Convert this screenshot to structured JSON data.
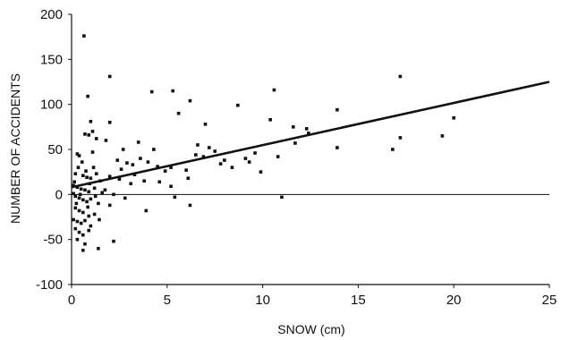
{
  "chart_data": {
    "type": "scatter",
    "title": "",
    "xlabel": "SNOW (cm)",
    "ylabel": "NUMBER OF ACCIDENTS",
    "xlim": [
      0,
      25
    ],
    "ylim": [
      -100,
      200
    ],
    "xticks": [
      0,
      5,
      10,
      15,
      20,
      25
    ],
    "yticks": [
      -100,
      -50,
      0,
      50,
      100,
      150,
      200
    ],
    "grid": false,
    "zero_line": true,
    "trendline": {
      "type": "linear",
      "x": [
        0,
        25
      ],
      "y": [
        8,
        125
      ]
    },
    "points": [
      {
        "x": 0.65,
        "y": 176
      },
      {
        "x": 2.0,
        "y": 131
      },
      {
        "x": 17.2,
        "y": 131
      },
      {
        "x": 4.2,
        "y": 114
      },
      {
        "x": 5.3,
        "y": 115
      },
      {
        "x": 10.6,
        "y": 116
      },
      {
        "x": 0.85,
        "y": 109
      },
      {
        "x": 6.2,
        "y": 104
      },
      {
        "x": 8.7,
        "y": 99
      },
      {
        "x": 13.9,
        "y": 94
      },
      {
        "x": 20.0,
        "y": 85
      },
      {
        "x": 10.4,
        "y": 83
      },
      {
        "x": 1.0,
        "y": 81
      },
      {
        "x": 2.0,
        "y": 80
      },
      {
        "x": 5.6,
        "y": 90
      },
      {
        "x": 7.0,
        "y": 78
      },
      {
        "x": 11.6,
        "y": 75
      },
      {
        "x": 12.3,
        "y": 73
      },
      {
        "x": 12.4,
        "y": 68
      },
      {
        "x": 1.1,
        "y": 70
      },
      {
        "x": 0.7,
        "y": 67
      },
      {
        "x": 0.9,
        "y": 66
      },
      {
        "x": 1.3,
        "y": 62
      },
      {
        "x": 1.8,
        "y": 60
      },
      {
        "x": 17.2,
        "y": 63
      },
      {
        "x": 19.4,
        "y": 65
      },
      {
        "x": 3.5,
        "y": 58
      },
      {
        "x": 11.7,
        "y": 57
      },
      {
        "x": 16.8,
        "y": 50
      },
      {
        "x": 13.9,
        "y": 52
      },
      {
        "x": 6.6,
        "y": 55
      },
      {
        "x": 7.2,
        "y": 52
      },
      {
        "x": 7.5,
        "y": 48
      },
      {
        "x": 9.6,
        "y": 46
      },
      {
        "x": 0.3,
        "y": 45
      },
      {
        "x": 0.4,
        "y": 43
      },
      {
        "x": 1.1,
        "y": 47
      },
      {
        "x": 2.4,
        "y": 38
      },
      {
        "x": 2.9,
        "y": 35
      },
      {
        "x": 3.2,
        "y": 33
      },
      {
        "x": 4.0,
        "y": 36
      },
      {
        "x": 4.5,
        "y": 31
      },
      {
        "x": 5.2,
        "y": 30
      },
      {
        "x": 6.0,
        "y": 27
      },
      {
        "x": 6.5,
        "y": 44
      },
      {
        "x": 8.0,
        "y": 38
      },
      {
        "x": 9.1,
        "y": 40
      },
      {
        "x": 9.9,
        "y": 25
      },
      {
        "x": 10.8,
        "y": 42
      },
      {
        "x": 1.3,
        "y": 23
      },
      {
        "x": 0.2,
        "y": 23
      },
      {
        "x": 0.6,
        "y": 21
      },
      {
        "x": 0.8,
        "y": 19
      },
      {
        "x": 1.0,
        "y": 18
      },
      {
        "x": 1.5,
        "y": 15
      },
      {
        "x": 2.0,
        "y": 20
      },
      {
        "x": 2.5,
        "y": 17
      },
      {
        "x": 3.1,
        "y": 12
      },
      {
        "x": 3.8,
        "y": 15
      },
      {
        "x": 4.6,
        "y": 14
      },
      {
        "x": 5.2,
        "y": 9
      },
      {
        "x": 6.1,
        "y": 18
      },
      {
        "x": 0.1,
        "y": 10
      },
      {
        "x": 0.3,
        "y": 8
      },
      {
        "x": 0.5,
        "y": 6
      },
      {
        "x": 0.7,
        "y": 5
      },
      {
        "x": 0.9,
        "y": 3
      },
      {
        "x": 1.2,
        "y": 7
      },
      {
        "x": 1.6,
        "y": 2
      },
      {
        "x": 2.2,
        "y": 0
      },
      {
        "x": 0.1,
        "y": 1
      },
      {
        "x": 0.2,
        "y": -2
      },
      {
        "x": 0.4,
        "y": -4
      },
      {
        "x": 0.6,
        "y": -6
      },
      {
        "x": 0.8,
        "y": -8
      },
      {
        "x": 1.0,
        "y": -5
      },
      {
        "x": 1.4,
        "y": -10
      },
      {
        "x": 2.0,
        "y": -12
      },
      {
        "x": 2.8,
        "y": -4
      },
      {
        "x": 5.4,
        "y": -3
      },
      {
        "x": 11.0,
        "y": -3
      },
      {
        "x": 6.2,
        "y": -12
      },
      {
        "x": 0.2,
        "y": -15
      },
      {
        "x": 0.4,
        "y": -18
      },
      {
        "x": 0.6,
        "y": -20
      },
      {
        "x": 0.9,
        "y": -24
      },
      {
        "x": 1.2,
        "y": -22
      },
      {
        "x": 3.9,
        "y": -18
      },
      {
        "x": 0.1,
        "y": -28
      },
      {
        "x": 0.3,
        "y": -30
      },
      {
        "x": 0.5,
        "y": -32
      },
      {
        "x": 0.7,
        "y": -29
      },
      {
        "x": 1.0,
        "y": -35
      },
      {
        "x": 0.2,
        "y": -38
      },
      {
        "x": 0.4,
        "y": -42
      },
      {
        "x": 0.6,
        "y": -45
      },
      {
        "x": 0.9,
        "y": -40
      },
      {
        "x": 0.3,
        "y": -50
      },
      {
        "x": 0.7,
        "y": -55
      },
      {
        "x": 2.2,
        "y": -52
      },
      {
        "x": 0.6,
        "y": -62
      },
      {
        "x": 1.4,
        "y": -60
      },
      {
        "x": 0.15,
        "y": 14
      },
      {
        "x": 0.35,
        "y": 30
      },
      {
        "x": 0.55,
        "y": 36
      },
      {
        "x": 0.75,
        "y": 26
      },
      {
        "x": 0.95,
        "y": 12
      },
      {
        "x": 1.15,
        "y": 30
      },
      {
        "x": 1.45,
        "y": -28
      },
      {
        "x": 1.75,
        "y": 5
      },
      {
        "x": 2.6,
        "y": 28
      },
      {
        "x": 3.3,
        "y": 22
      },
      {
        "x": 0.25,
        "y": -10
      },
      {
        "x": 0.45,
        "y": 0
      },
      {
        "x": 0.85,
        "y": -14
      },
      {
        "x": 1.25,
        "y": -2
      },
      {
        "x": 7.8,
        "y": 34
      },
      {
        "x": 8.4,
        "y": 30
      },
      {
        "x": 4.9,
        "y": 26
      },
      {
        "x": 3.6,
        "y": 40
      },
      {
        "x": 4.3,
        "y": 50
      },
      {
        "x": 2.7,
        "y": 50
      },
      {
        "x": 9.3,
        "y": 36
      },
      {
        "x": 6.9,
        "y": 42
      }
    ],
    "colors": {
      "marker": "#111111",
      "line": "#111111",
      "axis": "#111111",
      "background": "#ffffff"
    }
  }
}
